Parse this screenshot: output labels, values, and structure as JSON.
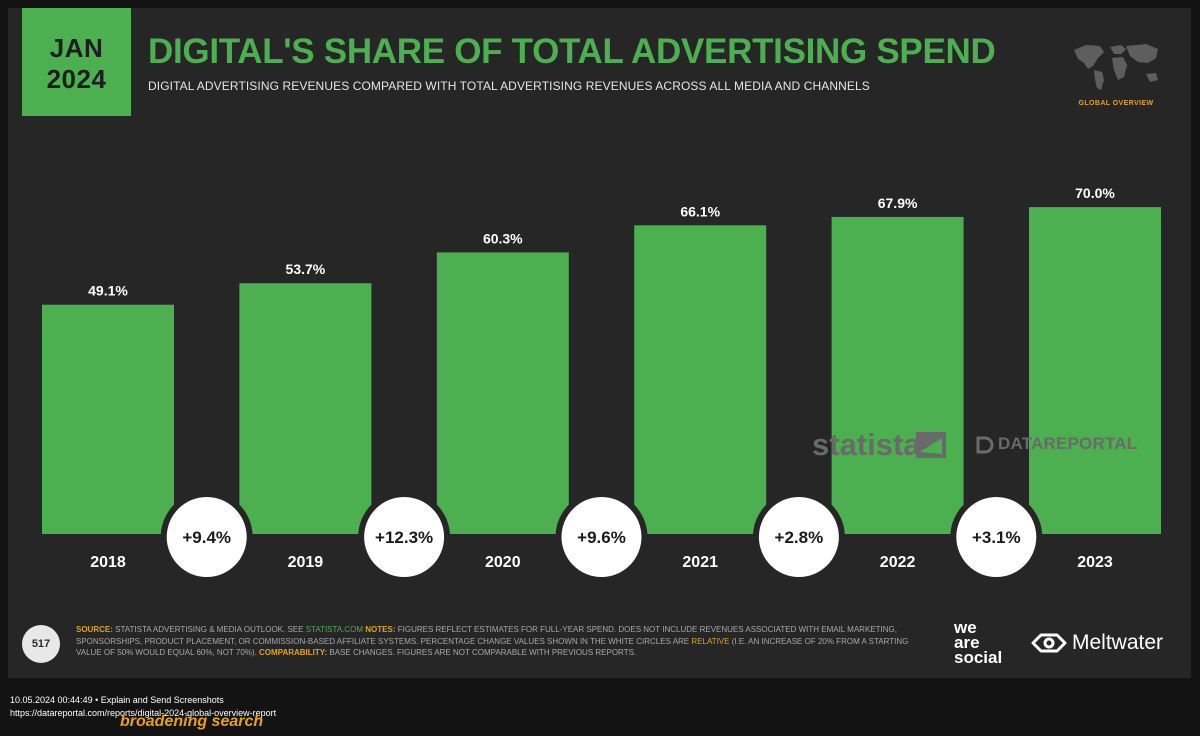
{
  "header": {
    "month": "JAN",
    "year": "2024",
    "title": "DIGITAL'S SHARE OF TOTAL ADVERTISING SPEND",
    "subtitle": "DIGITAL ADVERTISING REVENUES COMPARED WITH TOTAL ADVERTISING REVENUES ACROSS ALL MEDIA AND CHANNELS",
    "badge": "GLOBAL OVERVIEW",
    "badge_icon": "world-map-icon"
  },
  "chart_data": {
    "type": "bar",
    "categories": [
      "2018",
      "2019",
      "2020",
      "2021",
      "2022",
      "2023"
    ],
    "values": [
      49.1,
      53.7,
      60.3,
      66.1,
      67.9,
      70.0
    ],
    "value_labels": [
      "49.1%",
      "53.7%",
      "60.3%",
      "66.1%",
      "67.9%",
      "70.0%"
    ],
    "changes": [
      "+9.4%",
      "+12.3%",
      "+9.6%",
      "+2.8%",
      "+3.1%"
    ],
    "ylim": [
      0,
      100
    ],
    "grid": false,
    "legend": "none",
    "title": "",
    "xlabel": "",
    "ylabel": ""
  },
  "watermarks": {
    "statista": "statista",
    "datareportal": "DATAREPORTAL"
  },
  "footer": {
    "page_number": "517",
    "source_label": "SOURCE:",
    "source_text": "STATISTA ADVERTISING & MEDIA OUTLOOK. SEE",
    "source_link": "STATISTA.COM",
    "notes_label": "NOTES:",
    "notes_text_1": "FIGURES REFLECT ESTIMATES FOR FULL-YEAR SPEND. DOES NOT INCLUDE REVENUES ASSOCIATED WITH EMAIL MARKETING, SPONSORSHIPS, PRODUCT PLACEMENT, OR COMMISSION-BASED AFFILIATE SYSTEMS. PERCENTAGE CHANGE VALUES SHOWN IN THE WHITE CIRCLES ARE",
    "notes_relative": "RELATIVE",
    "notes_text_2": "(I.E. AN INCREASE OF 20% FROM A STARTING VALUE OF 50% WOULD EQUAL 60%, NOT 70%).",
    "comparability_label": "COMPARABILITY:",
    "comparability_text": "BASE CHANGES. FIGURES ARE NOT COMPARABLE WITH PREVIOUS REPORTS.",
    "we_are_social": [
      "we",
      "are",
      "social"
    ],
    "meltwater": "Meltwater"
  },
  "caption": {
    "line1": "10.05.2024 00:44:49 • Explain and Send Screenshots",
    "url": "https://datareportal.com/reports/digital-2024-global-overview-report",
    "overlay": "broadening search"
  },
  "colors": {
    "bar": "#4caf50",
    "title": "#4caf50",
    "background": "#262626",
    "accent": "#e1a21b"
  }
}
